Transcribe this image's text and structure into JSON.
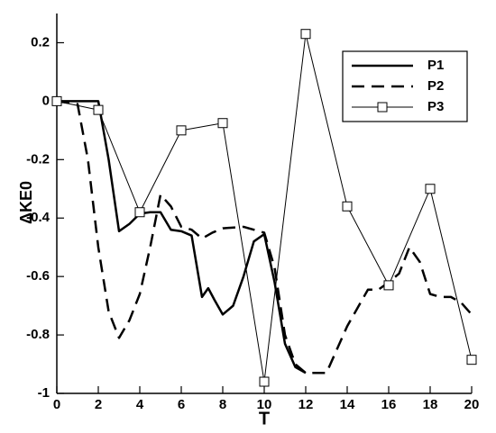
{
  "chart_data": {
    "type": "line",
    "xlabel": "T",
    "ylabel": "ΔKE0",
    "xlim": [
      0,
      20
    ],
    "ylim": [
      -1,
      0.3
    ],
    "xticks": [
      0,
      2,
      4,
      6,
      8,
      10,
      12,
      14,
      16,
      18,
      20
    ],
    "yticks": [
      -1,
      -0.8,
      -0.6,
      -0.4,
      -0.2,
      0,
      0.2
    ],
    "legend": "upper right",
    "series": [
      {
        "name": "P1",
        "color": "#000000",
        "style": "solid",
        "width": 2.5,
        "x": [
          0,
          2,
          2.5,
          3,
          3.5,
          4,
          4.5,
          5,
          5.5,
          6,
          6.5,
          7,
          7.3,
          7.6,
          8,
          8.5,
          9,
          9.5,
          10,
          10.5,
          11,
          11.5,
          12
        ],
        "values": [
          0,
          0,
          -0.2,
          -0.445,
          -0.42,
          -0.385,
          -0.38,
          -0.38,
          -0.44,
          -0.445,
          -0.46,
          -0.67,
          -0.64,
          -0.68,
          -0.73,
          -0.7,
          -0.6,
          -0.48,
          -0.455,
          -0.62,
          -0.83,
          -0.91,
          -0.93
        ]
      },
      {
        "name": "P2",
        "color": "#000000",
        "style": "dashed",
        "width": 2.5,
        "x": [
          0,
          1,
          1.5,
          2,
          2.5,
          3,
          3.5,
          4,
          4.5,
          5,
          5.5,
          6,
          6.5,
          7,
          7.5,
          8,
          9,
          9.5,
          10,
          10.5,
          11,
          11.5,
          12,
          13,
          14,
          15,
          15.5,
          16,
          16.5,
          17,
          17.5,
          18,
          18.5,
          19,
          19.5,
          20
        ],
        "values": [
          0,
          -0.01,
          -0.2,
          -0.5,
          -0.72,
          -0.81,
          -0.75,
          -0.66,
          -0.5,
          -0.32,
          -0.36,
          -0.43,
          -0.44,
          -0.47,
          -0.45,
          -0.435,
          -0.43,
          -0.44,
          -0.45,
          -0.57,
          -0.8,
          -0.9,
          -0.93,
          -0.93,
          -0.77,
          -0.645,
          -0.645,
          -0.62,
          -0.59,
          -0.5,
          -0.55,
          -0.66,
          -0.67,
          -0.67,
          -0.69,
          -0.73
        ]
      },
      {
        "name": "P3",
        "color": "#000000",
        "style": "solid",
        "width": 1,
        "marker": "square",
        "x": [
          0,
          2,
          4,
          6,
          8,
          10,
          12,
          14,
          16,
          18,
          20
        ],
        "values": [
          0,
          -0.03,
          -0.38,
          -0.1,
          -0.075,
          -0.96,
          0.23,
          -0.36,
          -0.63,
          -0.3,
          -0.885
        ]
      }
    ]
  }
}
